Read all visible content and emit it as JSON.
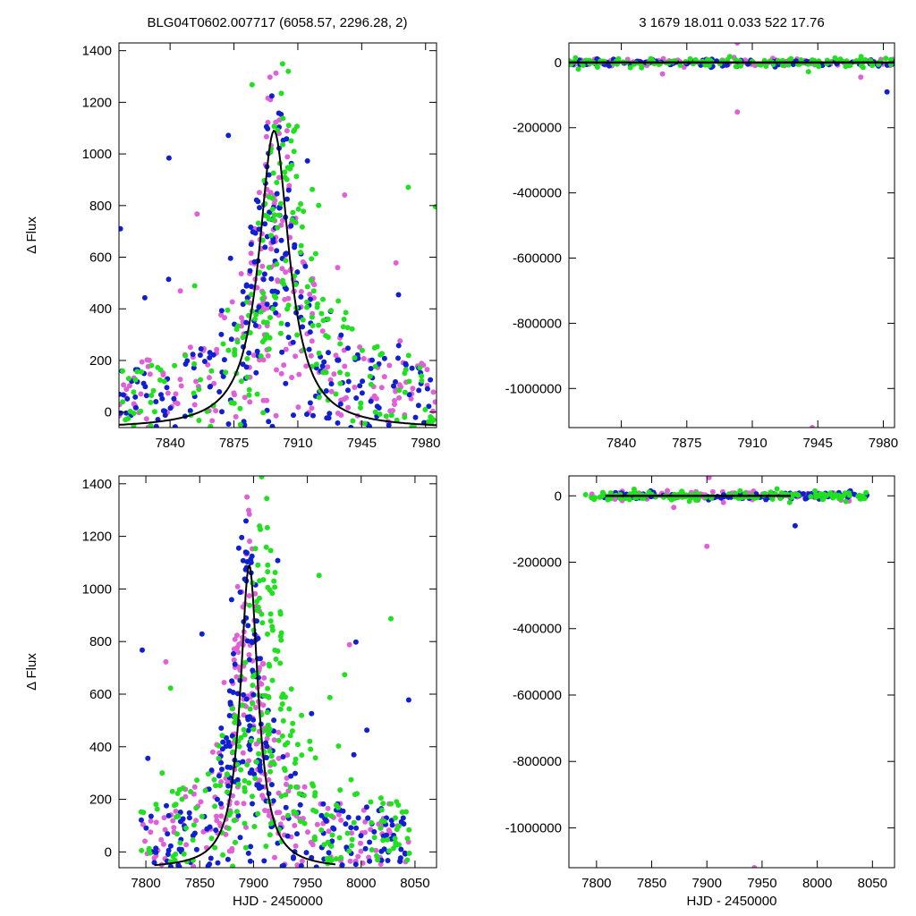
{
  "header": {
    "left": "BLG04T0602.007717 (6058.57, 2296.28,    2)",
    "right": "3   1679   18.011   0.033   522   17.76"
  },
  "colors": {
    "series_1": "#e060d8",
    "series_2": "#1020d0",
    "series_3": "#20e020",
    "model": "#000000"
  },
  "chart_data": [
    {
      "id": "top-left",
      "type": "scatter",
      "ylabel": "Δ Flux",
      "xlabel": "",
      "xlim": [
        7812,
        7986
      ],
      "ylim": [
        -60,
        1430
      ],
      "xticks": [
        7840,
        7875,
        7910,
        7945,
        7980
      ],
      "yticks": [
        0,
        200,
        400,
        600,
        800,
        1000,
        1200,
        1400
      ],
      "grid": false,
      "series": [
        {
          "color": "#e060d8",
          "seed": 11,
          "count": 240,
          "mode": "event",
          "center": 7898,
          "width": 18,
          "xspan": [
            7812,
            7986
          ],
          "ymin": -60,
          "ymax": 1430
        },
        {
          "color": "#1020d0",
          "seed": 23,
          "count": 240,
          "mode": "event",
          "center": 7898,
          "width": 18,
          "xspan": [
            7812,
            7986
          ],
          "ymin": -60,
          "ymax": 1430
        },
        {
          "color": "#20e020",
          "seed": 37,
          "count": 230,
          "mode": "event",
          "center": 7902,
          "width": 20,
          "xspan": [
            7812,
            7986
          ],
          "ymin": -60,
          "ymax": 1430
        }
      ],
      "model": {
        "t0": 7897,
        "tE": 10.0,
        "peak": 1090,
        "base": -65,
        "xrange": [
          7812,
          7986
        ]
      }
    },
    {
      "id": "top-right",
      "type": "scatter",
      "ylabel": "",
      "xlabel": "",
      "xlim": [
        7812,
        7986
      ],
      "ylim": [
        -1120000,
        60000
      ],
      "xticks": [
        7840,
        7875,
        7910,
        7945,
        7980
      ],
      "yticks": [
        0,
        -200000,
        -400000,
        -600000,
        -800000,
        -1000000
      ],
      "grid": false,
      "series": [
        {
          "color": "#e060d8",
          "seed": 41,
          "count": 110,
          "mode": "flat",
          "xspan": [
            7812,
            7986
          ],
          "spread": 6000,
          "outliers": [
            [
              7902,
              60000
            ],
            [
              7902,
              -152000
            ],
            [
              7942,
              -1120000
            ],
            [
              7862,
              -35000
            ],
            [
              7968,
              -45000
            ]
          ]
        },
        {
          "color": "#1020d0",
          "seed": 53,
          "count": 110,
          "mode": "flat",
          "xspan": [
            7812,
            7986
          ],
          "spread": 5000,
          "outliers": [
            [
              7982,
              -90000
            ],
            [
              7888,
              -15000
            ]
          ]
        },
        {
          "color": "#20e020",
          "seed": 67,
          "count": 130,
          "mode": "flat",
          "xspan": [
            7812,
            7986
          ],
          "spread": 7000,
          "outliers": [
            [
              7898,
              18000
            ],
            [
              7940,
              -28000
            ]
          ]
        }
      ],
      "model": {
        "flat": 0,
        "xrange": [
          7812,
          7986
        ]
      }
    },
    {
      "id": "bottom-left",
      "type": "scatter",
      "ylabel": "Δ Flux",
      "xlabel": "HJD - 2450000",
      "xlim": [
        7775,
        8070
      ],
      "ylim": [
        -60,
        1430
      ],
      "xticks": [
        7800,
        7850,
        7900,
        7950,
        8000,
        8050
      ],
      "yticks": [
        0,
        200,
        400,
        600,
        800,
        1000,
        1200,
        1400
      ],
      "grid": false,
      "series": [
        {
          "color": "#e060d8",
          "seed": 79,
          "count": 260,
          "mode": "event",
          "center": 7895,
          "width": 20,
          "xspan": [
            7795,
            8045
          ],
          "ymin": -60,
          "ymax": 1430
        },
        {
          "color": "#1020d0",
          "seed": 83,
          "count": 260,
          "mode": "event",
          "center": 7893,
          "width": 20,
          "xspan": [
            7795,
            8045
          ],
          "ymin": -60,
          "ymax": 1430
        },
        {
          "color": "#20e020",
          "seed": 97,
          "count": 280,
          "mode": "event",
          "center": 7910,
          "width": 28,
          "xspan": [
            7795,
            8045
          ],
          "ymin": -60,
          "ymax": 1430
        }
      ],
      "model": {
        "t0": 7896,
        "tE": 10.0,
        "peak": 1090,
        "base": -65,
        "xrange": [
          7808,
          7976
        ]
      }
    },
    {
      "id": "bottom-right",
      "type": "scatter",
      "ylabel": "",
      "xlabel": "HJD - 2450000",
      "xlim": [
        7775,
        8070
      ],
      "ylim": [
        -1120000,
        60000
      ],
      "xticks": [
        7800,
        7850,
        7900,
        7950,
        8000,
        8050
      ],
      "yticks": [
        0,
        -200000,
        -400000,
        -600000,
        -800000,
        -1000000
      ],
      "grid": false,
      "series": [
        {
          "color": "#e060d8",
          "seed": 101,
          "count": 110,
          "mode": "flat",
          "xspan": [
            7795,
            8045
          ],
          "spread": 6000,
          "outliers": [
            [
              7902,
              55000
            ],
            [
              7900,
              -152000
            ],
            [
              7943,
              -1120000
            ],
            [
              7870,
              -35000
            ],
            [
              7915,
              -20000
            ]
          ]
        },
        {
          "color": "#1020d0",
          "seed": 113,
          "count": 110,
          "mode": "flat",
          "xspan": [
            7805,
            8045
          ],
          "spread": 5000,
          "outliers": [
            [
              7980,
              -90000
            ],
            [
              8030,
              15000
            ]
          ]
        },
        {
          "color": "#20e020",
          "seed": 127,
          "count": 140,
          "mode": "flat",
          "xspan": [
            7790,
            8045
          ],
          "spread": 7000,
          "outliers": [
            [
              7930,
              15000
            ],
            [
              7975,
              -20000
            ]
          ]
        }
      ],
      "model": {
        "flat": 0,
        "xrange": [
          7808,
          7976
        ]
      }
    }
  ]
}
